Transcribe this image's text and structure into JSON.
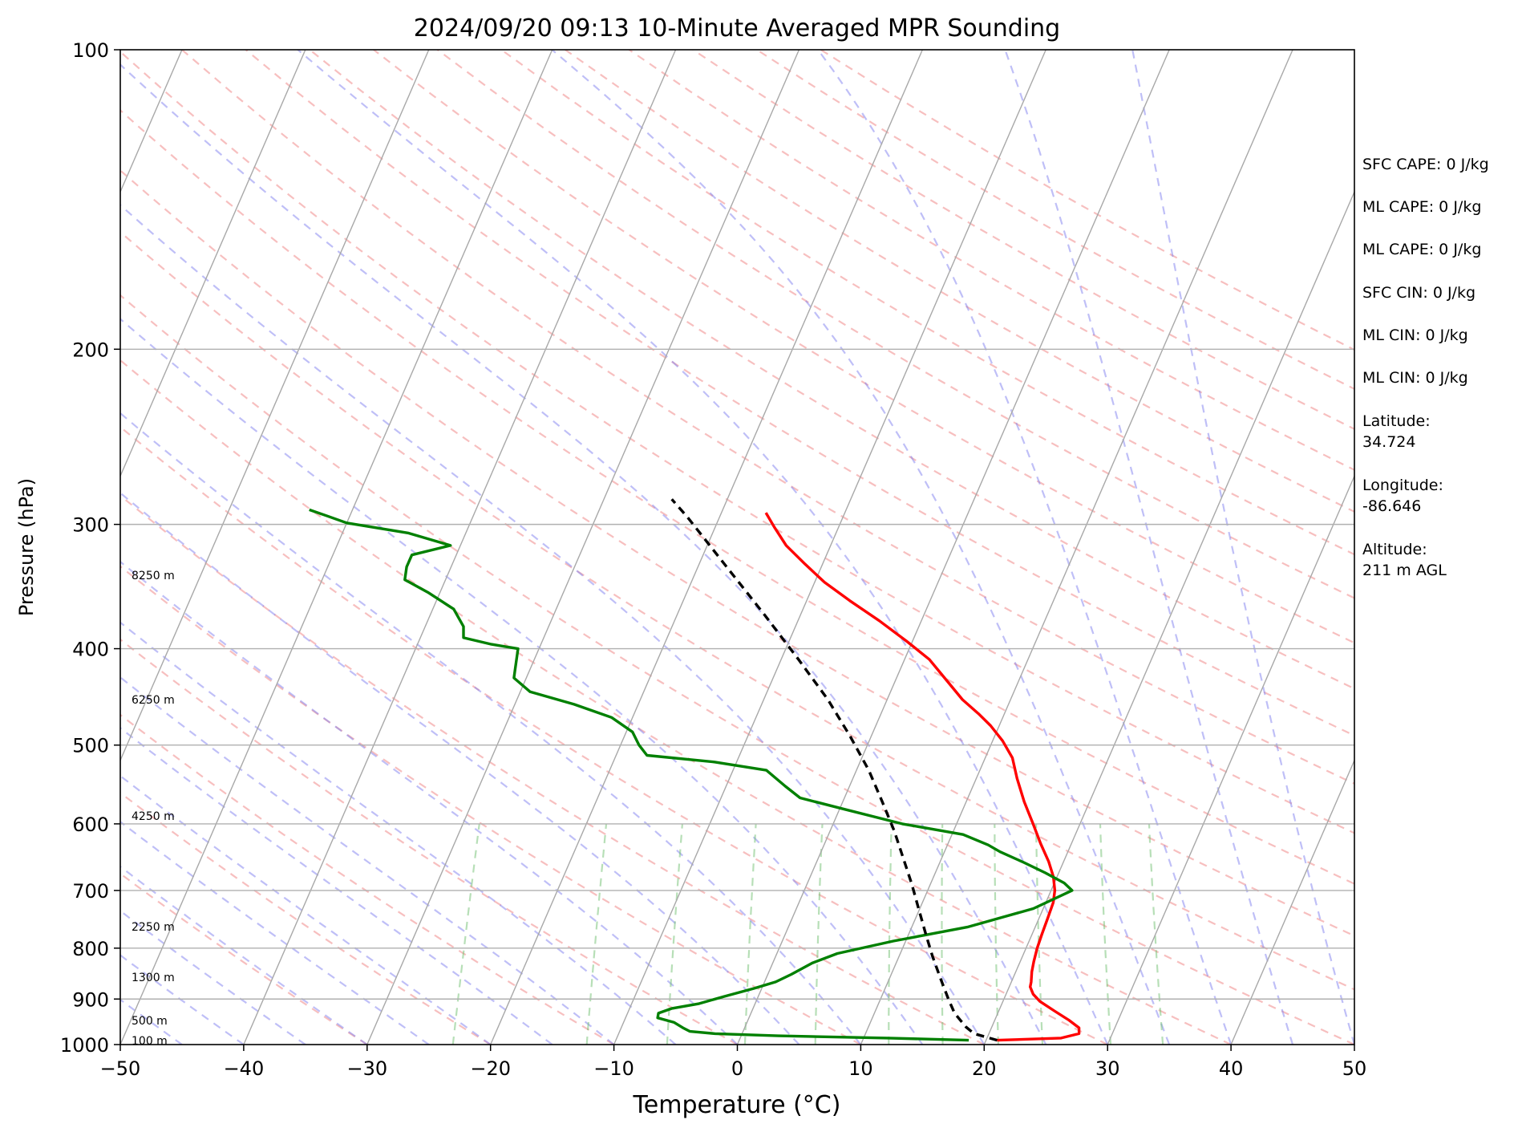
{
  "chart_data": {
    "type": "line",
    "title": "2024/09/20 09:13 10-Minute Averaged MPR Sounding",
    "xlabel": "Temperature (°C)",
    "ylabel": "Pressure (hPa)",
    "xlim": [
      -50,
      50
    ],
    "ylim": [
      1000,
      100
    ],
    "y_scale": "log",
    "grid": true,
    "x_ticks": [
      "−50",
      "−40",
      "−30",
      "−20",
      "−10",
      "0",
      "10",
      "20",
      "30",
      "40",
      "50"
    ],
    "y_ticks": [
      "100",
      "200",
      "300",
      "400",
      "500",
      "600",
      "700",
      "800",
      "900",
      "1000"
    ],
    "height_labels": [
      "8250 m",
      "6250 m",
      "4250 m",
      "2250 m",
      "1300 m",
      "500 m",
      "100 m"
    ],
    "series": [
      {
        "color": "#ff0000",
        "points": [
          [
            20.9,
            990
          ],
          [
            26,
            985
          ],
          [
            27.3,
            975
          ],
          [
            27.1,
            962
          ],
          [
            26,
            945
          ],
          [
            24.5,
            925
          ],
          [
            23,
            905
          ],
          [
            22.2,
            890
          ],
          [
            21.7,
            875
          ],
          [
            21.6,
            865
          ],
          [
            21.3,
            845
          ],
          [
            21.1,
            825
          ],
          [
            20.9,
            800
          ],
          [
            20.8,
            775
          ],
          [
            20.7,
            745
          ],
          [
            20.6,
            720
          ],
          [
            20.3,
            700
          ],
          [
            19.7,
            678
          ],
          [
            18.8,
            655
          ],
          [
            17.5,
            628
          ],
          [
            16.2,
            600
          ],
          [
            14.7,
            570
          ],
          [
            13.3,
            540
          ],
          [
            12.2,
            515
          ],
          [
            10.8,
            495
          ],
          [
            9.3,
            478
          ],
          [
            7.9,
            465
          ],
          [
            6.1,
            450
          ],
          [
            4.1,
            430
          ],
          [
            2,
            410
          ],
          [
            -0.5,
            393
          ],
          [
            -3.4,
            375
          ],
          [
            -6.5,
            358
          ],
          [
            -9.2,
            343
          ],
          [
            -11.4,
            329
          ],
          [
            -13.6,
            315
          ],
          [
            -15.2,
            302
          ],
          [
            -16.4,
            292
          ]
        ]
      },
      {
        "color": "#008000",
        "points": [
          [
            18.6,
            990
          ],
          [
            12,
            985
          ],
          [
            3,
            980
          ],
          [
            -2.2,
            975
          ],
          [
            -4.3,
            970
          ],
          [
            -5,
            962
          ],
          [
            -5.9,
            950
          ],
          [
            -7.4,
            940
          ],
          [
            -7.5,
            930
          ],
          [
            -6.6,
            920
          ],
          [
            -4.6,
            910
          ],
          [
            -2.8,
            895
          ],
          [
            -0.6,
            878
          ],
          [
            0.9,
            865
          ],
          [
            1.9,
            850
          ],
          [
            3.2,
            828
          ],
          [
            4.9,
            810
          ],
          [
            9,
            787
          ],
          [
            14.5,
            762
          ],
          [
            19.2,
            730
          ],
          [
            21.7,
            700
          ],
          [
            20.8,
            688
          ],
          [
            18.9,
            672
          ],
          [
            16.8,
            656
          ],
          [
            14.5,
            640
          ],
          [
            13.3,
            630
          ],
          [
            10.9,
            615
          ],
          [
            5.6,
            600
          ],
          [
            0.4,
            580
          ],
          [
            -3.6,
            565
          ],
          [
            -5.2,
            550
          ],
          [
            -7.3,
            530
          ],
          [
            -11.8,
            520
          ],
          [
            -17.5,
            512
          ],
          [
            -18.5,
            500
          ],
          [
            -19.5,
            485
          ],
          [
            -21.7,
            469
          ],
          [
            -25.2,
            455
          ],
          [
            -29.2,
            442
          ],
          [
            -31,
            428
          ],
          [
            -31.2,
            420
          ],
          [
            -31.7,
            400
          ],
          [
            -34,
            396
          ],
          [
            -36.5,
            390
          ],
          [
            -36.9,
            380
          ],
          [
            -38.3,
            365
          ],
          [
            -41,
            351
          ],
          [
            -43.3,
            341
          ],
          [
            -43.6,
            331
          ],
          [
            -43.6,
            322
          ],
          [
            -40.8,
            315
          ],
          [
            -44.7,
            306
          ],
          [
            -50,
            299
          ],
          [
            -51.9,
            294
          ],
          [
            -53.5,
            290
          ]
        ]
      },
      {
        "color": "#000000",
        "dashed": true,
        "points": [
          [
            20.9,
            990
          ],
          [
            18.8,
            975
          ],
          [
            17.9,
            960
          ],
          [
            16.5,
            930
          ],
          [
            15.5,
            900
          ],
          [
            14.2,
            860
          ],
          [
            12.7,
            815
          ],
          [
            11.4,
            775
          ],
          [
            9.9,
            730
          ],
          [
            8.5,
            690
          ],
          [
            6.9,
            650
          ],
          [
            5.2,
            610
          ],
          [
            3.2,
            570
          ],
          [
            1,
            530
          ],
          [
            -1.7,
            490
          ],
          [
            -4.8,
            450
          ],
          [
            -8.6,
            410
          ],
          [
            -12.9,
            370
          ],
          [
            -17.8,
            330
          ],
          [
            -22.6,
            295
          ],
          [
            -24.5,
            283
          ]
        ]
      }
    ]
  },
  "side_stats": [
    "SFC CAPE: 0 J/kg",
    "ML CAPE: 0 J/kg",
    "ML CAPE: 0 J/kg",
    "SFC CIN: 0 J/kg",
    "ML CIN: 0 J/kg",
    "ML CIN: 0 J/kg"
  ],
  "location": {
    "latitude_label": "Latitude:",
    "latitude_value": "34.724",
    "longitude_label": "Longitude:",
    "longitude_value": "-86.646",
    "altitude_label": "Altitude:",
    "altitude_value": "211 m AGL"
  }
}
